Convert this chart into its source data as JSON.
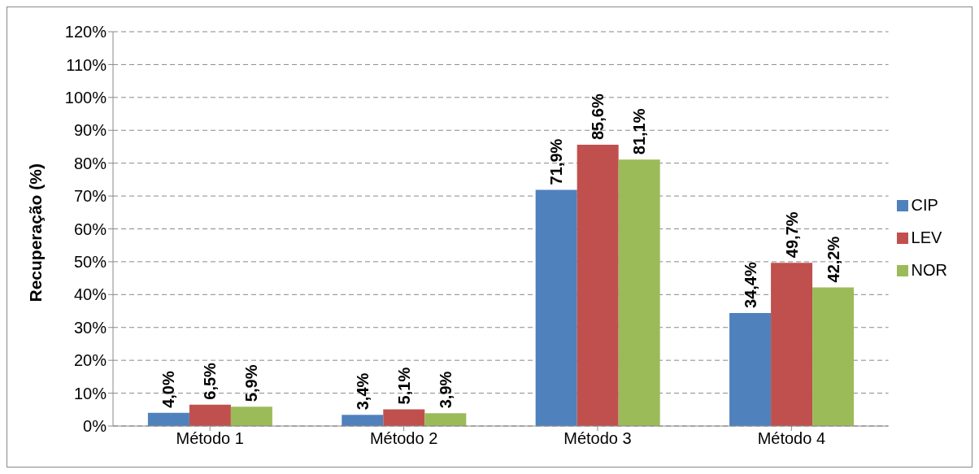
{
  "chart_data": {
    "type": "bar",
    "ylabel": "Recuperação (%)",
    "categories": [
      "Método 1",
      "Método 2",
      "Método 3",
      "Método 4"
    ],
    "series": [
      {
        "name": "CIP",
        "color": "#4f81bd",
        "values": [
          4.0,
          3.4,
          71.9,
          34.4
        ],
        "value_labels": [
          "4,0%",
          "3,4%",
          "71,9%",
          "34,4%"
        ]
      },
      {
        "name": "LEV",
        "color": "#c0504d",
        "values": [
          6.5,
          5.1,
          85.6,
          49.7
        ],
        "value_labels": [
          "6,5%",
          "5,1%",
          "85,6%",
          "49,7%"
        ]
      },
      {
        "name": "NOR",
        "color": "#9bbb59",
        "values": [
          5.9,
          3.9,
          81.1,
          42.2
        ],
        "value_labels": [
          "5,9%",
          "3,9%",
          "81,1%",
          "42,2%"
        ]
      }
    ],
    "ylim": [
      0,
      120
    ],
    "yticks": [
      {
        "value": 0,
        "label": "0%"
      },
      {
        "value": 10,
        "label": "10%"
      },
      {
        "value": 20,
        "label": "20%"
      },
      {
        "value": 30,
        "label": "30%"
      },
      {
        "value": 40,
        "label": "40%"
      },
      {
        "value": 50,
        "label": "50%"
      },
      {
        "value": 60,
        "label": "60%"
      },
      {
        "value": 70,
        "label": "70%"
      },
      {
        "value": 80,
        "label": "80%"
      },
      {
        "value": 90,
        "label": "90%"
      },
      {
        "value": 100,
        "label": "100%"
      },
      {
        "value": 110,
        "label": "110%"
      },
      {
        "value": 120,
        "label": "120%"
      }
    ],
    "grid": "y",
    "legend": "right"
  }
}
